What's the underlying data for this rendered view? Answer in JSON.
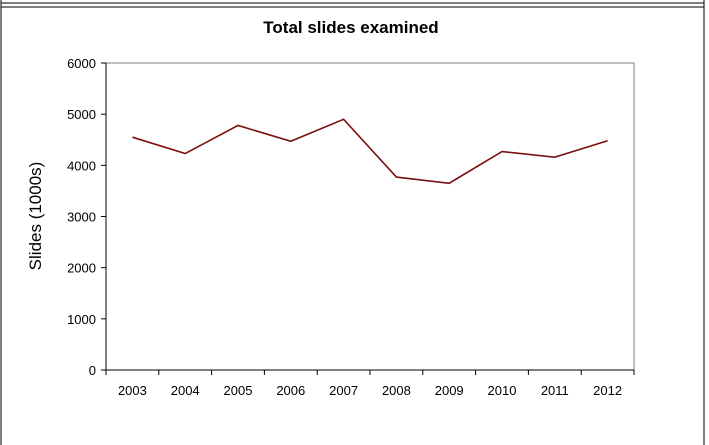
{
  "chart_data": {
    "type": "line",
    "title": "Total slides examined",
    "xlabel": "",
    "ylabel": "Slides (1000s)",
    "ylim": [
      0,
      6000
    ],
    "yticks": [
      0,
      1000,
      2000,
      3000,
      4000,
      5000,
      6000
    ],
    "categories": [
      "2003",
      "2004",
      "2005",
      "2006",
      "2007",
      "2008",
      "2009",
      "2010",
      "2011",
      "2012"
    ],
    "series": [
      {
        "values": [
          4550,
          4230,
          4780,
          4470,
          4900,
          3770,
          3650,
          4270,
          4160,
          4480
        ]
      }
    ],
    "grid": false,
    "legend": "none",
    "colors": {
      "line": "#7a1010",
      "axis": "#000000",
      "plot_border": "#7f7f7f",
      "frame": "#000000"
    }
  }
}
